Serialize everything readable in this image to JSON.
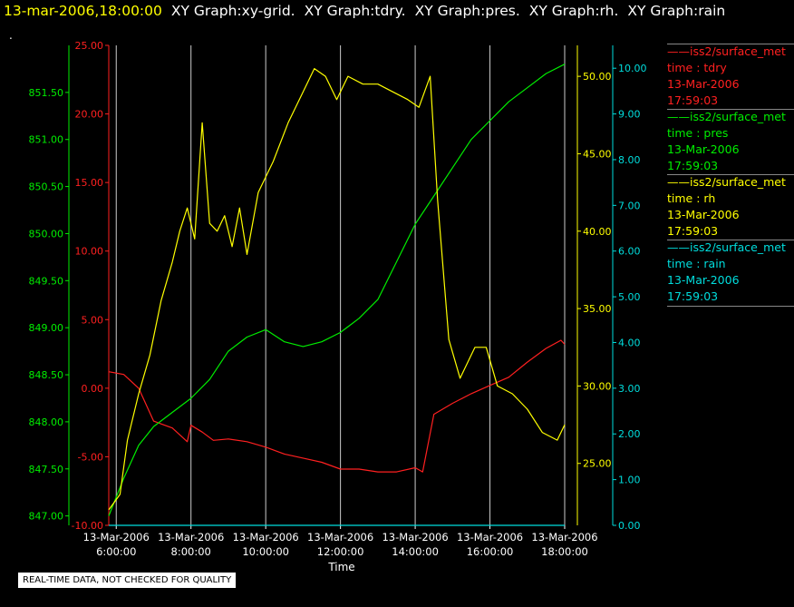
{
  "header": {
    "timestamp": "13-mar-2006,18:00:00",
    "graphs": [
      "XY Graph:xy-grid.",
      "XY Graph:tdry.",
      "XY Graph:pres.",
      "XY Graph:rh.",
      "XY Graph:rain"
    ],
    "dot": "."
  },
  "footer": {
    "note": "REAL-TIME DATA, NOT CHECKED FOR QUALITY"
  },
  "colors": {
    "tdry": "#ff2020",
    "pres": "#00ee00",
    "rh": "#ffff00",
    "rain": "#00dddd",
    "grid": "#cccccc",
    "axis": "#ffffff"
  },
  "legend": [
    {
      "series": "——iss2/surface_met",
      "var": "time : tdry",
      "date": "13-Mar-2006",
      "time": "17:59:03",
      "color": "#ff2020"
    },
    {
      "series": "——iss2/surface_met",
      "var": "time : pres",
      "date": "13-Mar-2006",
      "time": "17:59:03",
      "color": "#00ee00"
    },
    {
      "series": "——iss2/surface_met",
      "var": "time : rh",
      "date": "13-Mar-2006",
      "time": "17:59:03",
      "color": "#ffff00"
    },
    {
      "series": "——iss2/surface_met",
      "var": "time : rain",
      "date": "13-Mar-2006",
      "time": "17:59:03",
      "color": "#00dddd"
    }
  ],
  "chart_data": {
    "type": "line",
    "xlabel": "Time",
    "x_ticks": [
      {
        "date": "13-Mar-2006",
        "time": "6:00:00",
        "hour": 6
      },
      {
        "date": "13-Mar-2006",
        "time": "8:00:00",
        "hour": 8
      },
      {
        "date": "13-Mar-2006",
        "time": "10:00:00",
        "hour": 10
      },
      {
        "date": "13-Mar-2006",
        "time": "12:00:00",
        "hour": 12
      },
      {
        "date": "13-Mar-2006",
        "time": "14:00:00",
        "hour": 14
      },
      {
        "date": "13-Mar-2006",
        "time": "16:00:00",
        "hour": 16
      },
      {
        "date": "13-Mar-2006",
        "time": "18:00:00",
        "hour": 18
      }
    ],
    "xlim_hours": [
      5.8,
      18.0
    ],
    "grid": true,
    "axes": {
      "tdry": {
        "range": [
          -10,
          25
        ],
        "ticks": [
          "25.00",
          "20.00",
          "15.00",
          "10.00",
          "5.00",
          "0.00",
          "-5.00",
          "-10.00"
        ]
      },
      "pres": {
        "range": [
          846.9,
          852.0
        ],
        "ticks": [
          "851.50",
          "851.00",
          "850.50",
          "850.00",
          "849.50",
          "849.00",
          "848.50",
          "848.00",
          "847.50",
          "847.00"
        ]
      },
      "rh": {
        "range": [
          21.0,
          52.0
        ],
        "ticks": [
          "50.00",
          "45.00",
          "40.00",
          "35.00",
          "30.00",
          "25.00"
        ]
      },
      "rain": {
        "range": [
          0,
          10.5
        ],
        "ticks": [
          "10.00",
          "9.00",
          "8.00",
          "7.00",
          "6.00",
          "5.00",
          "4.00",
          "3.00",
          "2.00",
          "1.00",
          "0.00"
        ]
      }
    },
    "series": [
      {
        "name": "tdry",
        "x": [
          5.8,
          6.2,
          6.6,
          7.0,
          7.2,
          7.5,
          7.9,
          8.0,
          8.3,
          8.6,
          9.0,
          9.5,
          10.0,
          10.5,
          11.0,
          11.5,
          12.0,
          12.5,
          13.0,
          13.5,
          14.0,
          14.2,
          14.5,
          15.0,
          15.5,
          16.0,
          16.5,
          17.0,
          17.5,
          17.9,
          18.0
        ],
        "y": [
          1.2,
          1.0,
          0.0,
          -2.4,
          -2.6,
          -2.9,
          -3.9,
          -2.7,
          -3.2,
          -3.8,
          -3.7,
          -3.9,
          -4.3,
          -4.8,
          -5.1,
          -5.4,
          -5.9,
          -5.9,
          -6.1,
          -6.1,
          -5.8,
          -6.1,
          -1.9,
          -1.1,
          -0.4,
          0.2,
          0.8,
          1.9,
          2.9,
          3.5,
          3.2
        ]
      },
      {
        "name": "pres",
        "x": [
          5.8,
          6.2,
          6.6,
          7.0,
          7.5,
          8.0,
          8.5,
          9.0,
          9.5,
          10.0,
          10.5,
          11.0,
          11.5,
          12.0,
          12.5,
          13.0,
          13.5,
          14.0,
          14.5,
          15.0,
          15.5,
          16.0,
          16.5,
          17.0,
          17.5,
          18.0
        ],
        "y": [
          847.0,
          847.4,
          847.75,
          847.95,
          848.1,
          848.25,
          848.45,
          848.75,
          848.9,
          848.98,
          848.85,
          848.8,
          848.85,
          848.95,
          849.1,
          849.3,
          849.7,
          850.1,
          850.4,
          850.7,
          851.0,
          851.2,
          851.4,
          851.55,
          851.7,
          851.8
        ]
      },
      {
        "name": "rh",
        "x": [
          5.8,
          6.1,
          6.3,
          6.6,
          6.9,
          7.2,
          7.5,
          7.7,
          7.9,
          8.1,
          8.3,
          8.5,
          8.7,
          8.9,
          9.1,
          9.3,
          9.5,
          9.8,
          10.2,
          10.6,
          11.0,
          11.3,
          11.6,
          11.9,
          12.2,
          12.6,
          13.0,
          13.4,
          13.8,
          14.1,
          14.4,
          14.6,
          14.9,
          15.2,
          15.6,
          15.9,
          16.2,
          16.6,
          17.0,
          17.4,
          17.8,
          18.0
        ],
        "y": [
          22.0,
          23.0,
          26.5,
          29.5,
          32.0,
          35.5,
          38.0,
          40.0,
          41.5,
          39.5,
          47.0,
          40.5,
          40.0,
          41.0,
          39.0,
          41.5,
          38.5,
          42.5,
          44.5,
          47.0,
          49.0,
          50.5,
          50.0,
          48.5,
          50.0,
          49.5,
          49.5,
          49.0,
          48.5,
          48.0,
          50.0,
          42.0,
          33.0,
          30.5,
          32.5,
          32.5,
          30.0,
          29.5,
          28.5,
          27.0,
          26.5,
          27.5
        ]
      },
      {
        "name": "rain",
        "x": [
          5.8,
          18.0
        ],
        "y": [
          0.0,
          0.0
        ]
      }
    ]
  }
}
